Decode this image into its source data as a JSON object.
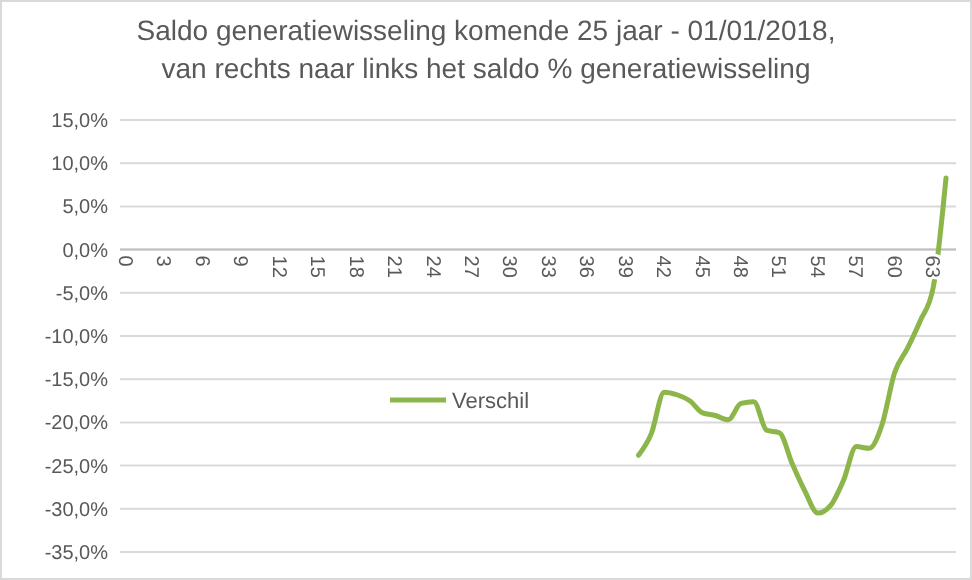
{
  "chart_data": {
    "type": "line",
    "title": "Saldo generatiewisseling komende 25 jaar - 01/01/2018,\nvan rechts naar links  het saldo % generatiewisseling",
    "categories": [
      "0",
      null,
      null,
      "3",
      null,
      null,
      "6",
      null,
      null,
      "9",
      null,
      null,
      "12",
      null,
      null,
      "15",
      null,
      null,
      "18",
      null,
      null,
      "21",
      null,
      null,
      "24",
      null,
      null,
      "27",
      null,
      null,
      "30",
      null,
      null,
      "33",
      null,
      null,
      "36",
      null,
      null,
      "39",
      null,
      null,
      "42",
      null,
      null,
      "45",
      null,
      null,
      "48",
      null,
      null,
      "51",
      null,
      null,
      "54",
      null,
      null,
      "57",
      null,
      null,
      "60",
      null,
      null,
      "63",
      null
    ],
    "series": [
      {
        "name": "Verschil",
        "color": "#8cb54a",
        "values": [
          null,
          null,
          null,
          null,
          null,
          null,
          null,
          null,
          null,
          null,
          null,
          null,
          null,
          null,
          null,
          null,
          null,
          null,
          null,
          null,
          null,
          null,
          null,
          null,
          null,
          null,
          null,
          null,
          null,
          null,
          null,
          null,
          null,
          null,
          null,
          null,
          null,
          null,
          null,
          null,
          -23.8,
          -21.3,
          -16.5,
          -16.8,
          -17.5,
          -18.9,
          -19.2,
          -19.7,
          -17.8,
          -17.6,
          -20.9,
          -21.2,
          -24.8,
          -28.0,
          -30.5,
          -29.6,
          -26.7,
          -22.8,
          -23.0,
          -20.3,
          -14.2,
          -11.4,
          -8.2,
          -4.4,
          8.3
        ]
      }
    ],
    "ylim": [
      -35,
      15
    ],
    "yticks": [
      {
        "value": -35,
        "label": "-35,0%"
      },
      {
        "value": -30,
        "label": "-30,0%"
      },
      {
        "value": -25,
        "label": "-25,0%"
      },
      {
        "value": -20,
        "label": "-20,0%"
      },
      {
        "value": -15,
        "label": "-15,0%"
      },
      {
        "value": -10,
        "label": "-10,0%"
      },
      {
        "value": -5,
        "label": "-5,0%"
      },
      {
        "value": 0,
        "label": "0,0%"
      },
      {
        "value": 5,
        "label": "5,0%"
      },
      {
        "value": 10,
        "label": "10,0%"
      },
      {
        "value": 15,
        "label": "15,0%"
      }
    ],
    "grid": "y",
    "legend": "center",
    "line_style": "solid",
    "marker": "none"
  }
}
